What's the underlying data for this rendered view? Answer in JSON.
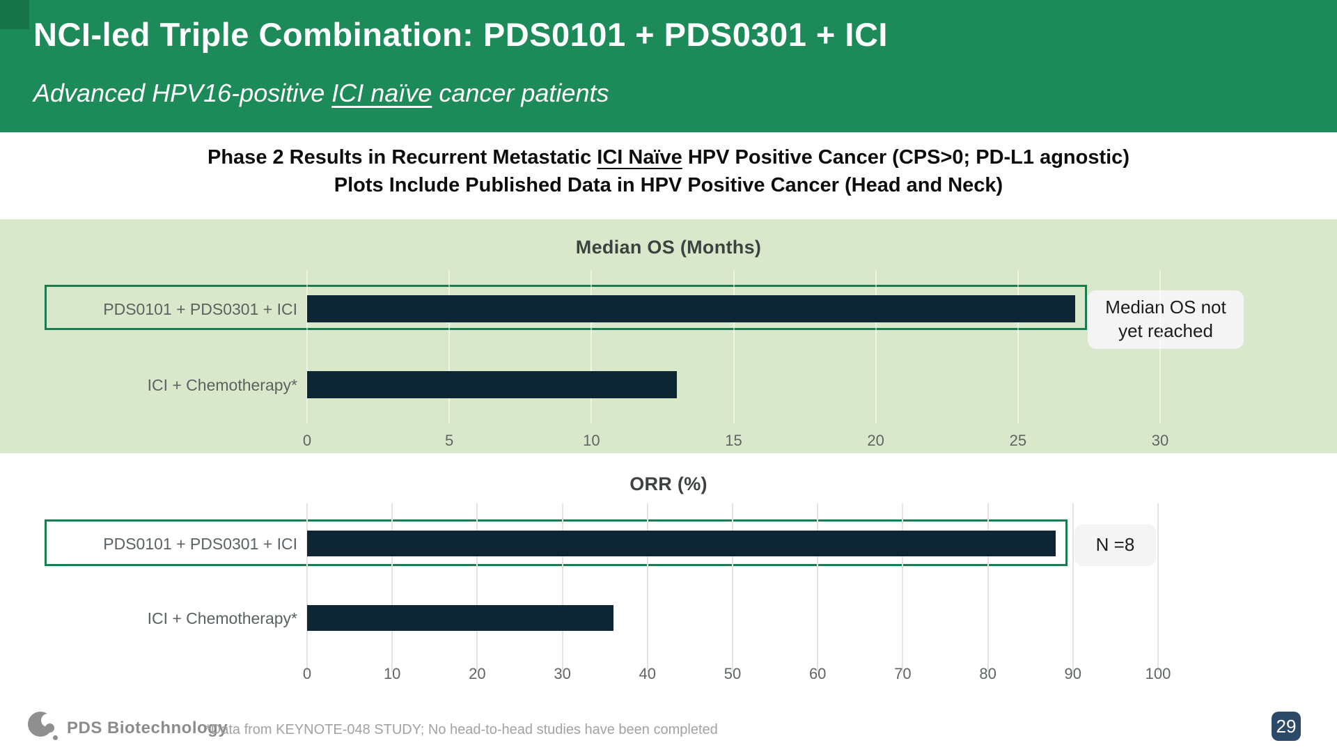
{
  "slide": {
    "header": {
      "title": "NCI-led Triple Combination: PDS0101 + PDS0301 + ICI",
      "subtitle": {
        "prefix": "Advanced HPV16-positive ",
        "underlined": "ICI naïve",
        "suffix": " cancer patients"
      }
    },
    "section_heading": {
      "line1": {
        "prefix": "Phase 2 Results in Recurrent Metastatic ",
        "underlined": "ICI Naïve",
        "suffix": " HPV Positive Cancer (CPS>0; PD-L1 agnostic)"
      },
      "line2": "Plots Include Published Data in HPV Positive Cancer (Head and Neck)"
    },
    "footer": {
      "brand": "PDS Biotechnology",
      "footnote": "*Data from KEYNOTE-048 STUDY; No head-to-head studies have been completed",
      "page_number": "29"
    }
  },
  "chart_data": [
    {
      "type": "bar",
      "orientation": "horizontal",
      "title": "Median OS (Months)",
      "categories": [
        "PDS0101 + PDS0301 + ICI",
        "ICI + Chemotherapy*"
      ],
      "values": [
        27,
        13
      ],
      "xlim": [
        0,
        30
      ],
      "xticks": [
        0,
        5,
        10,
        15,
        20,
        25,
        30
      ],
      "grid": true,
      "legend": "none",
      "highlighted_row": 0,
      "annotation": "Median OS not yet reached",
      "bar_color": "#0e2634",
      "background": "#d9e8cb"
    },
    {
      "type": "bar",
      "orientation": "horizontal",
      "title": "ORR (%)",
      "categories": [
        "PDS0101 + PDS0301 + ICI",
        "ICI + Chemotherapy*"
      ],
      "values": [
        88,
        36
      ],
      "xlim": [
        0,
        100
      ],
      "xticks": [
        0,
        10,
        20,
        30,
        40,
        50,
        60,
        70,
        80,
        90,
        100
      ],
      "grid": true,
      "legend": "none",
      "highlighted_row": 0,
      "annotation": "N =8",
      "bar_color": "#0e2634",
      "background": "#ffffff"
    }
  ],
  "colors": {
    "header_green": "#1d8a59",
    "header_corner": "#17734a",
    "light_green_panel": "#d9e8cb",
    "bar_navy": "#0e2634",
    "outline_green": "#1b7a4e",
    "annotation_card": "#f4f4f4",
    "page_badge": "#2c4a68"
  }
}
